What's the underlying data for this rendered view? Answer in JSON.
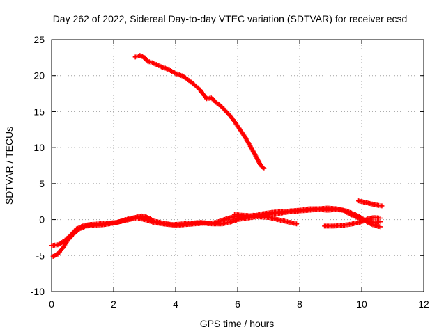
{
  "chart_data": {
    "type": "scatter",
    "title": "Day 262 of 2022, Sidereal Day-to-day VTEC variation (SDTVAR) for receiver ecsd",
    "xlabel": "GPS time / hours",
    "ylabel": "SDTVAR / TECUs",
    "xlim": [
      0,
      12
    ],
    "ylim": [
      -10,
      25
    ],
    "xticks": [
      0,
      2,
      4,
      6,
      8,
      10,
      12
    ],
    "yticks": [
      -10,
      -5,
      0,
      5,
      10,
      15,
      20,
      25
    ],
    "grid": true,
    "marker": "+",
    "color": "#ff0000",
    "series": [
      {
        "name": "track-high",
        "points": [
          [
            2.7,
            22.6
          ],
          [
            2.85,
            22.8
          ],
          [
            3.0,
            22.5
          ],
          [
            3.1,
            22.0
          ],
          [
            3.25,
            21.8
          ],
          [
            3.5,
            21.3
          ],
          [
            3.75,
            20.9
          ],
          [
            4.0,
            20.3
          ],
          [
            4.25,
            19.9
          ],
          [
            4.5,
            19.1
          ],
          [
            4.75,
            18.2
          ],
          [
            4.9,
            17.4
          ],
          [
            5.0,
            16.8
          ],
          [
            5.15,
            16.9
          ],
          [
            5.3,
            16.3
          ],
          [
            5.5,
            15.6
          ],
          [
            5.75,
            14.5
          ],
          [
            6.0,
            13.0
          ],
          [
            6.25,
            11.4
          ],
          [
            6.5,
            9.5
          ],
          [
            6.75,
            7.5
          ],
          [
            6.85,
            7.1
          ]
        ]
      },
      {
        "name": "track-low-a",
        "points": [
          [
            0.0,
            -3.6
          ],
          [
            0.2,
            -3.5
          ],
          [
            0.4,
            -3.0
          ],
          [
            0.6,
            -2.2
          ],
          [
            0.8,
            -1.3
          ],
          [
            1.0,
            -0.9
          ],
          [
            1.2,
            -0.7
          ],
          [
            1.5,
            -0.6
          ],
          [
            1.8,
            -0.5
          ],
          [
            2.1,
            -0.4
          ],
          [
            2.4,
            0.0
          ],
          [
            2.7,
            0.3
          ],
          [
            2.9,
            0.5
          ],
          [
            3.1,
            0.3
          ],
          [
            3.3,
            -0.2
          ],
          [
            3.6,
            -0.5
          ],
          [
            3.9,
            -0.7
          ],
          [
            4.2,
            -0.6
          ],
          [
            4.5,
            -0.5
          ],
          [
            4.8,
            -0.4
          ],
          [
            5.1,
            -0.5
          ],
          [
            5.3,
            -0.4
          ],
          [
            5.5,
            -0.1
          ],
          [
            5.7,
            0.2
          ],
          [
            5.9,
            0.4
          ],
          [
            6.2,
            0.3
          ],
          [
            6.5,
            0.6
          ],
          [
            6.8,
            0.5
          ],
          [
            7.1,
            0.8
          ],
          [
            7.4,
            0.9
          ],
          [
            7.7,
            1.1
          ],
          [
            8.0,
            1.2
          ],
          [
            8.3,
            1.3
          ],
          [
            8.6,
            1.4
          ],
          [
            8.9,
            1.3
          ],
          [
            9.2,
            1.4
          ],
          [
            9.4,
            1.3
          ],
          [
            9.6,
            0.8
          ],
          [
            9.8,
            0.4
          ],
          [
            10.0,
            0.1
          ],
          [
            10.2,
            -0.2
          ],
          [
            10.4,
            -0.4
          ],
          [
            10.6,
            -0.3
          ]
        ]
      },
      {
        "name": "track-low-b",
        "points": [
          [
            0.05,
            -5.1
          ],
          [
            0.2,
            -4.8
          ],
          [
            0.35,
            -4.0
          ],
          [
            0.5,
            -3.0
          ],
          [
            0.7,
            -2.0
          ],
          [
            0.9,
            -1.3
          ],
          [
            1.1,
            -0.9
          ],
          [
            1.4,
            -0.8
          ],
          [
            1.7,
            -0.7
          ],
          [
            2.0,
            -0.5
          ],
          [
            2.3,
            -0.2
          ],
          [
            2.6,
            0.1
          ],
          [
            2.8,
            0.2
          ],
          [
            3.0,
            0.0
          ],
          [
            3.3,
            -0.4
          ],
          [
            3.6,
            -0.6
          ],
          [
            4.0,
            -0.8
          ],
          [
            4.3,
            -0.7
          ],
          [
            4.6,
            -0.6
          ],
          [
            4.9,
            -0.5
          ],
          [
            5.2,
            -0.6
          ],
          [
            5.5,
            -0.6
          ],
          [
            5.8,
            -0.3
          ],
          [
            6.0,
            0.0
          ],
          [
            6.3,
            0.2
          ],
          [
            6.6,
            0.4
          ],
          [
            7.0,
            0.3
          ],
          [
            7.3,
            0.0
          ],
          [
            7.6,
            -0.3
          ],
          [
            7.9,
            -0.6
          ]
        ]
      },
      {
        "name": "track-low-c",
        "points": [
          [
            5.9,
            0.7
          ],
          [
            6.2,
            0.6
          ],
          [
            6.5,
            0.5
          ],
          [
            6.8,
            0.8
          ],
          [
            7.1,
            1.0
          ],
          [
            7.4,
            1.1
          ],
          [
            7.7,
            1.2
          ],
          [
            8.0,
            1.3
          ],
          [
            8.3,
            1.5
          ],
          [
            8.6,
            1.5
          ],
          [
            8.9,
            1.6
          ],
          [
            9.2,
            1.5
          ],
          [
            9.5,
            1.2
          ],
          [
            9.8,
            0.7
          ],
          [
            10.0,
            0.2
          ],
          [
            10.2,
            -0.4
          ],
          [
            10.4,
            -0.8
          ],
          [
            10.6,
            -1.0
          ]
        ]
      },
      {
        "name": "track-low-d",
        "points": [
          [
            8.8,
            -0.9
          ],
          [
            9.1,
            -0.9
          ],
          [
            9.4,
            -0.8
          ],
          [
            9.7,
            -0.6
          ],
          [
            10.0,
            -0.3
          ],
          [
            10.2,
            0.1
          ],
          [
            10.4,
            0.3
          ],
          [
            10.6,
            0.2
          ]
        ]
      },
      {
        "name": "track-low-e",
        "points": [
          [
            9.9,
            2.6
          ],
          [
            10.1,
            2.4
          ],
          [
            10.3,
            2.2
          ],
          [
            10.5,
            2.0
          ],
          [
            10.65,
            1.9
          ]
        ]
      }
    ]
  }
}
